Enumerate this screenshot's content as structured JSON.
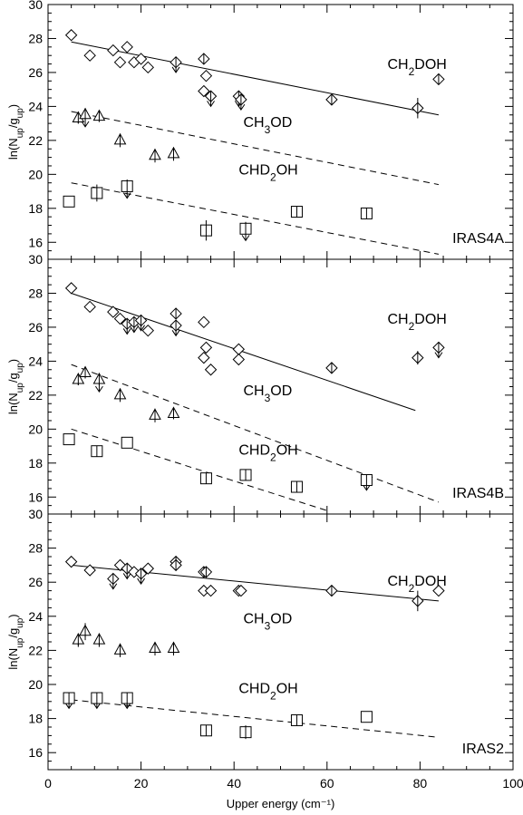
{
  "figure": {
    "background": "#ffffff",
    "ink": "#000000"
  },
  "chart_data": [
    {
      "type": "scatter",
      "source_label": "IRAS4A",
      "ylabel": "ln(N_up/g_up)",
      "xlabel": "",
      "xlim": [
        0,
        100
      ],
      "ylim": [
        15,
        30
      ],
      "yticks": [
        16,
        18,
        20,
        22,
        24,
        26,
        28,
        30
      ],
      "xticks": [
        0,
        20,
        40,
        60,
        80,
        100
      ],
      "show_xtick_labels": false,
      "species_labels": [
        {
          "text": "CH",
          "sub": "2",
          "rest": "DOH",
          "x": 73,
          "y": 26.2
        },
        {
          "text": "CH",
          "sub": "3",
          "rest": "OD",
          "x": 42,
          "y": 22.8
        },
        {
          "text": "CHD",
          "sub": "2",
          "rest": "OH",
          "x": 41,
          "y": 20.0
        }
      ],
      "series": [
        {
          "name": "CH2DOH",
          "marker": "diamond",
          "points": [
            {
              "x": 5,
              "y": 28.2,
              "err": 0
            },
            {
              "x": 9,
              "y": 27.0,
              "err": 0
            },
            {
              "x": 14,
              "y": 27.3,
              "err": 0
            },
            {
              "x": 15.5,
              "y": 26.6,
              "err": 0
            },
            {
              "x": 17,
              "y": 27.5,
              "err": 0
            },
            {
              "x": 18.5,
              "y": 26.6,
              "err": 0
            },
            {
              "x": 20,
              "y": 26.8,
              "err": 0
            },
            {
              "x": 21.5,
              "y": 26.3,
              "err": 0
            },
            {
              "x": 27.5,
              "y": 26.6,
              "err": 0.3,
              "upper": true
            },
            {
              "x": 33.5,
              "y": 26.8,
              "err": 0.3
            },
            {
              "x": 34,
              "y": 25.8,
              "err": 0
            },
            {
              "x": 33.5,
              "y": 24.9,
              "err": 0
            },
            {
              "x": 35,
              "y": 24.6,
              "err": 0.3,
              "upper": true
            },
            {
              "x": 41,
              "y": 24.6,
              "err": 0.3,
              "upper": true
            },
            {
              "x": 41.5,
              "y": 24.4,
              "err": 0.3,
              "upper": true
            },
            {
              "x": 61,
              "y": 24.4,
              "err": 0.3
            },
            {
              "x": 79.5,
              "y": 23.9,
              "err": 0.6
            },
            {
              "x": 84,
              "y": 25.6,
              "err": 0.2
            }
          ],
          "fit": {
            "style": "solid",
            "x": [
              5,
              84
            ],
            "y": [
              27.8,
              23.5
            ]
          }
        },
        {
          "name": "CH3OD",
          "marker": "triangle",
          "points": [
            {
              "x": 6.5,
              "y": 23.3,
              "err": 0.3
            },
            {
              "x": 8,
              "y": 23.5,
              "err": 0.4,
              "upper": true
            },
            {
              "x": 11,
              "y": 23.4,
              "err": 0.3
            },
            {
              "x": 15.5,
              "y": 22.0,
              "err": 0.4
            },
            {
              "x": 23,
              "y": 21.1,
              "err": 0.4
            },
            {
              "x": 27,
              "y": 21.2,
              "err": 0.4
            }
          ],
          "fit": {
            "style": "dashed",
            "x": [
              5,
              84
            ],
            "y": [
              23.7,
              19.4
            ]
          }
        },
        {
          "name": "CHD2OH",
          "marker": "square",
          "points": [
            {
              "x": 4.5,
              "y": 18.4,
              "err": 0
            },
            {
              "x": 10.5,
              "y": 18.9,
              "err": 0.5
            },
            {
              "x": 17,
              "y": 19.3,
              "err": 0.4,
              "upper": true
            },
            {
              "x": 34,
              "y": 16.7,
              "err": 0.6
            },
            {
              "x": 42.5,
              "y": 16.8,
              "err": 0.4,
              "upper": true
            },
            {
              "x": 53.5,
              "y": 17.8,
              "err": 0.3
            },
            {
              "x": 68.5,
              "y": 17.7,
              "err": 0.3
            }
          ],
          "fit": {
            "style": "dashed",
            "x": [
              5,
              84
            ],
            "y": [
              19.5,
              15.3
            ]
          }
        }
      ]
    },
    {
      "type": "scatter",
      "source_label": "IRAS4B",
      "ylabel": "ln(N_up/g_up)",
      "xlabel": "",
      "xlim": [
        0,
        100
      ],
      "ylim": [
        15,
        30
      ],
      "yticks": [
        16,
        18,
        20,
        22,
        24,
        26,
        28,
        30
      ],
      "xticks": [
        0,
        20,
        40,
        60,
        80,
        100
      ],
      "show_xtick_labels": false,
      "species_labels": [
        {
          "text": "CH",
          "sub": "2",
          "rest": "DOH",
          "x": 73,
          "y": 26.2
        },
        {
          "text": "CH",
          "sub": "3",
          "rest": "OD",
          "x": 42,
          "y": 22.0
        },
        {
          "text": "CHD",
          "sub": "2",
          "rest": "OH",
          "x": 41,
          "y": 18.5
        }
      ],
      "series": [
        {
          "name": "CH2DOH",
          "marker": "diamond",
          "points": [
            {
              "x": 5,
              "y": 28.3,
              "err": 0
            },
            {
              "x": 9,
              "y": 27.2,
              "err": 0
            },
            {
              "x": 14,
              "y": 26.9,
              "err": 0
            },
            {
              "x": 15.5,
              "y": 26.5,
              "err": 0
            },
            {
              "x": 17,
              "y": 26.2,
              "err": 0.3,
              "upper": true
            },
            {
              "x": 18.5,
              "y": 26.3,
              "err": 0.3,
              "upper": true
            },
            {
              "x": 20,
              "y": 26.4,
              "err": 0.3,
              "upper": true
            },
            {
              "x": 21.5,
              "y": 25.8,
              "err": 0
            },
            {
              "x": 27.5,
              "y": 26.8,
              "err": 0.3
            },
            {
              "x": 27.5,
              "y": 26.1,
              "err": 0.3,
              "upper": true
            },
            {
              "x": 33.5,
              "y": 26.3,
              "err": 0
            },
            {
              "x": 34,
              "y": 24.8,
              "err": 0
            },
            {
              "x": 33.5,
              "y": 24.2,
              "err": 0
            },
            {
              "x": 35,
              "y": 23.5,
              "err": 0
            },
            {
              "x": 41,
              "y": 24.7,
              "err": 0
            },
            {
              "x": 41,
              "y": 24.1,
              "err": 0
            },
            {
              "x": 61,
              "y": 23.6,
              "err": 0.3
            },
            {
              "x": 79.5,
              "y": 24.2,
              "err": 0.4
            },
            {
              "x": 84,
              "y": 24.8,
              "err": 0.3,
              "upper": true
            }
          ],
          "fit": {
            "style": "solid",
            "x": [
              5,
              79
            ],
            "y": [
              28.0,
              21.1
            ]
          }
        },
        {
          "name": "CH3OD",
          "marker": "triangle",
          "points": [
            {
              "x": 6.5,
              "y": 22.9,
              "err": 0.3
            },
            {
              "x": 8,
              "y": 23.3,
              "err": 0.3
            },
            {
              "x": 11,
              "y": 22.9,
              "err": 0.4,
              "upper": true
            },
            {
              "x": 15.5,
              "y": 22.0,
              "err": 0.4
            },
            {
              "x": 23,
              "y": 20.8,
              "err": 0.4
            },
            {
              "x": 27,
              "y": 20.9,
              "err": 0.2
            }
          ],
          "fit": {
            "style": "dashed",
            "x": [
              5,
              84
            ],
            "y": [
              23.8,
              15.7
            ]
          }
        },
        {
          "name": "CHD2OH",
          "marker": "square",
          "points": [
            {
              "x": 4.5,
              "y": 19.4,
              "err": 0
            },
            {
              "x": 10.5,
              "y": 18.7,
              "err": 0.3
            },
            {
              "x": 17,
              "y": 19.2,
              "err": 0
            },
            {
              "x": 34,
              "y": 17.1,
              "err": 0.3
            },
            {
              "x": 42.5,
              "y": 17.3,
              "err": 0.3
            },
            {
              "x": 53.5,
              "y": 16.6,
              "err": 0.3
            },
            {
              "x": 68.5,
              "y": 17.0,
              "err": 0.3,
              "upper": true
            }
          ],
          "fit": {
            "style": "dashed",
            "x": [
              5,
              60
            ],
            "y": [
              20.0,
              15.2
            ]
          }
        }
      ]
    },
    {
      "type": "scatter",
      "source_label": "IRAS2",
      "ylabel": "ln(N_up/g_up)",
      "xlabel": "Upper energy (cm⁻¹)",
      "xlim": [
        0,
        100
      ],
      "ylim": [
        15,
        30
      ],
      "yticks": [
        16,
        18,
        20,
        22,
        24,
        26,
        28,
        30
      ],
      "xticks": [
        0,
        20,
        40,
        60,
        80,
        100
      ],
      "show_xtick_labels": true,
      "species_labels": [
        {
          "text": "CH",
          "sub": "2",
          "rest": "DOH",
          "x": 73,
          "y": 25.8
        },
        {
          "text": "CH",
          "sub": "3",
          "rest": "OD",
          "x": 42,
          "y": 23.6
        },
        {
          "text": "CHD",
          "sub": "2",
          "rest": "OH",
          "x": 41,
          "y": 19.5
        }
      ],
      "series": [
        {
          "name": "CH2DOH",
          "marker": "diamond",
          "points": [
            {
              "x": 5,
              "y": 27.2,
              "err": 0
            },
            {
              "x": 9,
              "y": 26.7,
              "err": 0
            },
            {
              "x": 14,
              "y": 26.2,
              "err": 0.3,
              "upper": true
            },
            {
              "x": 15.5,
              "y": 27.0,
              "err": 0
            },
            {
              "x": 17,
              "y": 26.8,
              "err": 0.3,
              "upper": true
            },
            {
              "x": 18.5,
              "y": 26.6,
              "err": 0
            },
            {
              "x": 20,
              "y": 26.5,
              "err": 0.3,
              "upper": true
            },
            {
              "x": 21.5,
              "y": 26.8,
              "err": 0
            },
            {
              "x": 27.5,
              "y": 27.2,
              "err": 0.2
            },
            {
              "x": 27.5,
              "y": 27.0,
              "err": 0.3
            },
            {
              "x": 33.5,
              "y": 26.6,
              "err": 0.2
            },
            {
              "x": 34,
              "y": 26.6,
              "err": 0.3
            },
            {
              "x": 33.5,
              "y": 25.5,
              "err": 0
            },
            {
              "x": 35,
              "y": 25.5,
              "err": 0
            },
            {
              "x": 41,
              "y": 25.5,
              "err": 0
            },
            {
              "x": 41.5,
              "y": 25.5,
              "err": 0
            },
            {
              "x": 61,
              "y": 25.5,
              "err": 0.2
            },
            {
              "x": 79.5,
              "y": 24.9,
              "err": 0.6
            },
            {
              "x": 84,
              "y": 25.5,
              "err": 0
            }
          ],
          "fit": {
            "style": "solid",
            "x": [
              5,
              84
            ],
            "y": [
              27.0,
              24.9
            ]
          }
        },
        {
          "name": "CH3OD",
          "marker": "triangle",
          "points": [
            {
              "x": 6.5,
              "y": 22.6,
              "err": 0.4
            },
            {
              "x": 8,
              "y": 23.1,
              "err": 0.5
            },
            {
              "x": 11,
              "y": 22.6,
              "err": 0.4
            },
            {
              "x": 15.5,
              "y": 22.0,
              "err": 0.4
            },
            {
              "x": 23,
              "y": 22.1,
              "err": 0.4
            },
            {
              "x": 27,
              "y": 22.1,
              "err": 0.4
            }
          ]
        },
        {
          "name": "CHD2OH",
          "marker": "square",
          "points": [
            {
              "x": 4.5,
              "y": 19.2,
              "err": 0.3,
              "upper": true
            },
            {
              "x": 10.5,
              "y": 19.2,
              "err": 0.3,
              "upper": true
            },
            {
              "x": 17,
              "y": 19.2,
              "err": 0.3,
              "upper": true
            },
            {
              "x": 34,
              "y": 17.3,
              "err": 0.3
            },
            {
              "x": 42.5,
              "y": 17.2,
              "err": 0.4
            },
            {
              "x": 53.5,
              "y": 17.9,
              "err": 0.2
            },
            {
              "x": 68.5,
              "y": 18.1,
              "err": 0
            }
          ],
          "fit": {
            "style": "dashed",
            "x": [
              5,
              84
            ],
            "y": [
              19.1,
              16.9
            ]
          }
        }
      ]
    }
  ]
}
